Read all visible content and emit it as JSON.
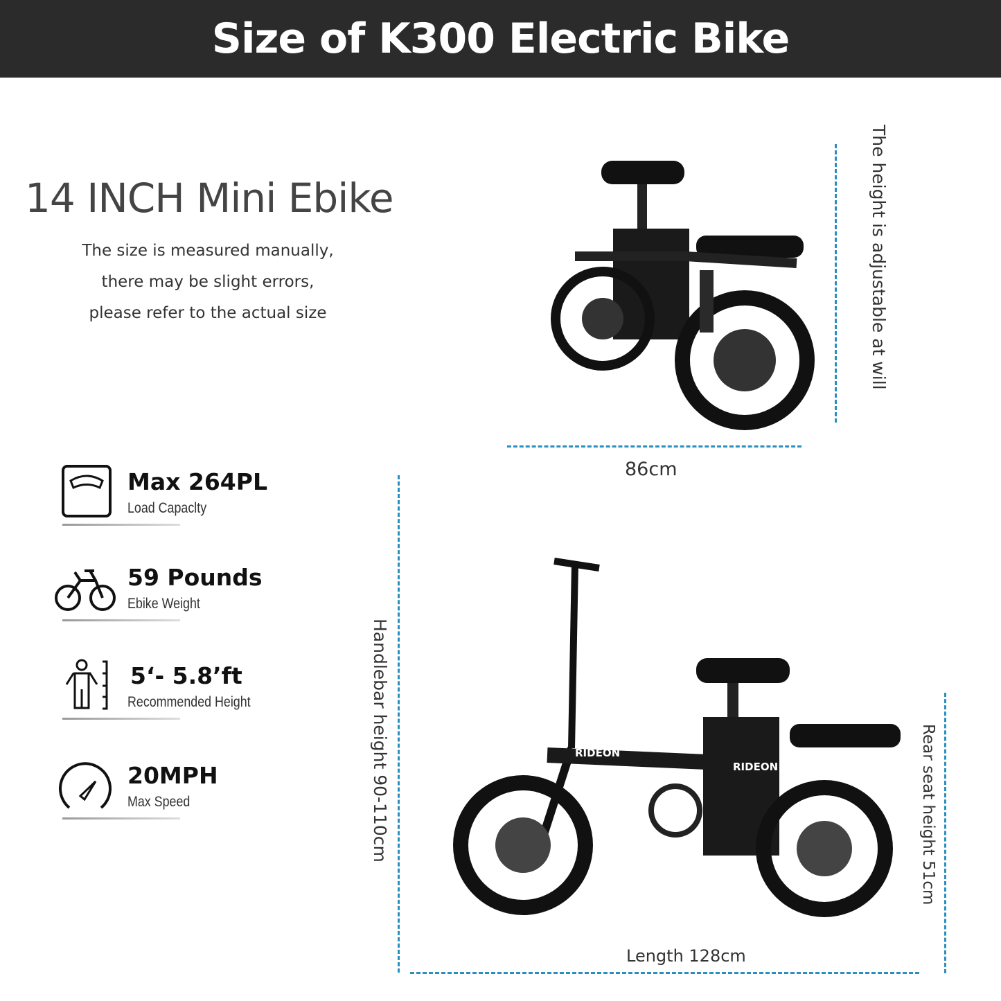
{
  "banner": {
    "title": "Size of K300 Electric Bike"
  },
  "intro": {
    "title": "14 INCH Mini Ebike",
    "note_lines": [
      "The size is measured manually,",
      "there may be slight errors,",
      "please refer to the actual size"
    ]
  },
  "specs": [
    {
      "icon": "scale-icon",
      "value": "Max 264PL",
      "label": "Load Capaclty"
    },
    {
      "icon": "bicycle-icon",
      "value": "59 Pounds",
      "label": "Ebike Weight"
    },
    {
      "icon": "person-height-icon",
      "value": "5‘- 5.8’ft",
      "label": "Recommended Height"
    },
    {
      "icon": "speedometer-icon",
      "value": "20MPH",
      "label": "Max Speed"
    }
  ],
  "dimensions": {
    "folded_width": "86cm",
    "folded_height": "The height is adjustable at will",
    "handlebar_height": "Handlebar height  90-110cm",
    "rear_seat_height": "Rear seat height  51cm",
    "length": "Length 128cm"
  },
  "brand_on_frame": "RIDEON",
  "colors": {
    "banner": "#2b2b2b",
    "dimension_line": "#2a8fbf"
  }
}
